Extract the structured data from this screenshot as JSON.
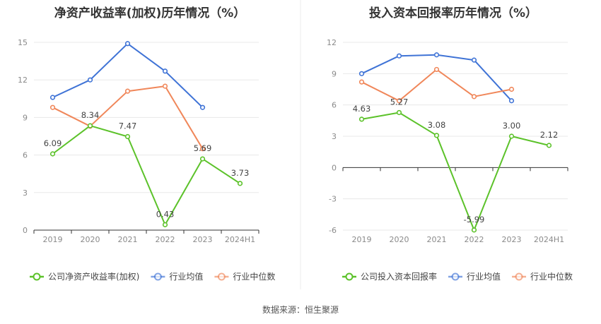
{
  "source_text": "数据来源：恒生聚源",
  "colors": {
    "company": "#5cc22a",
    "industry_avg": "#3f73d6",
    "industry_median": "#f0875a",
    "grid": "#e8e8e8",
    "axis": "#333333"
  },
  "chart_data": [
    {
      "type": "line",
      "title": "净资产收益率(加权)历年情况（%）",
      "categories": [
        "2019",
        "2020",
        "2021",
        "2022",
        "2023",
        "2024H1"
      ],
      "ylim": [
        0,
        15
      ],
      "yticks": [
        0,
        3,
        6,
        9,
        12,
        15
      ],
      "grid": true,
      "legend_position": "bottom",
      "series": [
        {
          "name": "公司净资产收益率(加权)",
          "color": "#5cc22a",
          "values": [
            6.09,
            8.34,
            7.47,
            0.43,
            5.69,
            3.73
          ],
          "labels": [
            "6.09",
            "8.34",
            "7.47",
            "0.43",
            "5.69",
            "3.73"
          ]
        },
        {
          "name": "行业均值",
          "color": "#3f73d6",
          "values": [
            10.6,
            12.0,
            14.9,
            12.7,
            9.8,
            null
          ]
        },
        {
          "name": "行业中位数",
          "color": "#f0875a",
          "values": [
            9.8,
            8.3,
            11.1,
            11.5,
            6.5,
            null
          ]
        }
      ]
    },
    {
      "type": "line",
      "title": "投入资本回报率历年情况（%）",
      "categories": [
        "2019",
        "2020",
        "2021",
        "2022",
        "2023",
        "2024H1"
      ],
      "ylim": [
        -6,
        12
      ],
      "yticks": [
        -6,
        -3,
        0,
        3,
        6,
        9,
        12
      ],
      "grid": true,
      "legend_position": "bottom",
      "series": [
        {
          "name": "公司投入资本回报率",
          "color": "#5cc22a",
          "values": [
            4.63,
            5.27,
            3.08,
            -5.99,
            3.0,
            2.12
          ],
          "labels": [
            "4.63",
            "5.27",
            "3.08",
            "-5.99",
            "3.00",
            "2.12"
          ]
        },
        {
          "name": "行业均值",
          "color": "#3f73d6",
          "values": [
            9.0,
            10.7,
            10.8,
            10.3,
            6.4,
            null
          ]
        },
        {
          "name": "行业中位数",
          "color": "#f0875a",
          "values": [
            8.2,
            6.4,
            9.4,
            6.8,
            7.5,
            null
          ]
        }
      ]
    }
  ]
}
